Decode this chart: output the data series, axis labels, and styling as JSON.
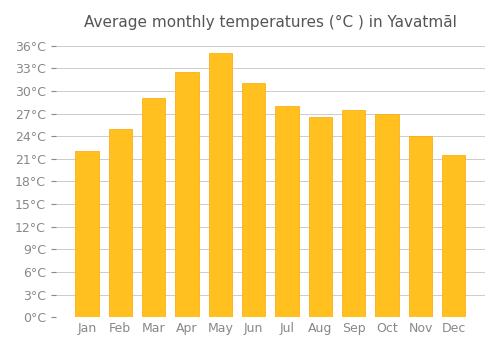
{
  "title": "Average monthly temperatures (°C ) in Yavatmāl",
  "months": [
    "Jan",
    "Feb",
    "Mar",
    "Apr",
    "May",
    "Jun",
    "Jul",
    "Aug",
    "Sep",
    "Oct",
    "Nov",
    "Dec"
  ],
  "values": [
    22.0,
    25.0,
    29.0,
    32.5,
    35.0,
    31.0,
    28.0,
    26.5,
    27.5,
    27.0,
    24.0,
    21.5
  ],
  "bar_color": "#FFC020",
  "bar_edge_color": "#FFA500",
  "background_color": "#FFFFFF",
  "grid_color": "#CCCCCC",
  "y_ticks": [
    0,
    3,
    6,
    9,
    12,
    15,
    18,
    21,
    24,
    27,
    30,
    33,
    36
  ],
  "ylim": [
    0,
    37
  ],
  "title_fontsize": 11,
  "tick_fontsize": 9,
  "title_color": "#555555",
  "tick_color": "#888888"
}
